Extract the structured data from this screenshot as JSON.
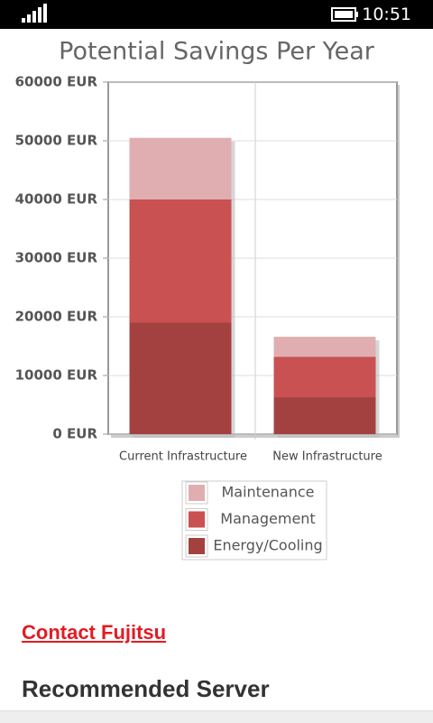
{
  "status_bar": {
    "time": "10:51"
  },
  "chart_data": {
    "type": "stacked-bar",
    "title": "Potential Savings Per Year",
    "categories": [
      "Current Infrastructure",
      "New Infrastructure"
    ],
    "series": [
      {
        "name": "Energy/Cooling",
        "color": "#a34141",
        "values": [
          19000,
          6300
        ]
      },
      {
        "name": "Management",
        "color": "#c95151",
        "values": [
          21000,
          6900
        ]
      },
      {
        "name": "Maintenance",
        "color": "#e0aeb1",
        "values": [
          10500,
          3400
        ]
      }
    ],
    "ylim": [
      0,
      60000
    ],
    "yticks": [
      {
        "value": 0,
        "label": "0 EUR"
      },
      {
        "value": 10000,
        "label": "10000 EUR"
      },
      {
        "value": 20000,
        "label": "20000 EUR"
      },
      {
        "value": 30000,
        "label": "30000 EUR"
      },
      {
        "value": 40000,
        "label": "40000 EUR"
      },
      {
        "value": 50000,
        "label": "50000 EUR"
      },
      {
        "value": 60000,
        "label": "60000 EUR"
      }
    ],
    "grid": true
  },
  "links": {
    "contact": "Contact Fujitsu"
  },
  "sections": {
    "recommended": "Recommended Server"
  }
}
